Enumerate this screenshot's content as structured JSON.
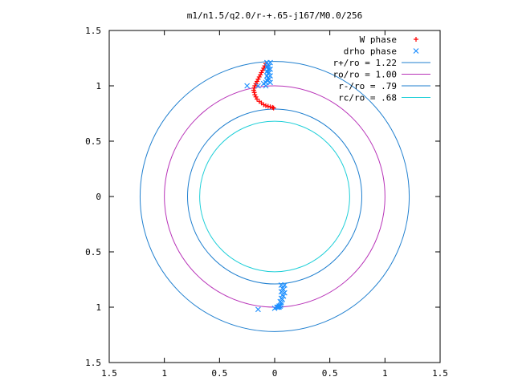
{
  "chart_data": {
    "type": "scatter",
    "title": "m1/n1.5/q2.0/r-+.65-j167/M0.0/256",
    "xlabel": "",
    "ylabel": "",
    "xlim": [
      -1.5,
      1.5
    ],
    "ylim": [
      -1.5,
      1.5
    ],
    "x_tick_values": [
      -1.5,
      -1,
      -0.5,
      0,
      0.5,
      1,
      1.5
    ],
    "x_tick_labels": [
      "1.5",
      "1",
      "0.5",
      "0",
      "0.5",
      "1",
      "1.5"
    ],
    "y_tick_values": [
      1.5,
      1,
      0.5,
      0,
      -0.5,
      -1,
      -1.5
    ],
    "y_tick_labels": [
      "1.5",
      "1",
      "0.5",
      "0",
      "0.5",
      "1",
      "1.5"
    ],
    "grid": false,
    "legend_position": "top-right",
    "circles": [
      {
        "name": "r+/ro = 1.22",
        "radius": 1.22,
        "color": "#1f7fcf"
      },
      {
        "name": "ro/ro = 1.00",
        "radius": 1.0,
        "color": "#b833b8"
      },
      {
        "name": "r-/ro = .79",
        "radius": 0.79,
        "color": "#1f7fcf"
      },
      {
        "name": "rc/ro = .68",
        "radius": 0.68,
        "color": "#1fcfd8"
      }
    ],
    "series": [
      {
        "name": "W phase",
        "marker": "+",
        "color": "#ff0000",
        "points": [
          [
            -0.08,
            1.2
          ],
          [
            -0.09,
            1.18
          ],
          [
            -0.1,
            1.16
          ],
          [
            -0.11,
            1.14
          ],
          [
            -0.12,
            1.12
          ],
          [
            -0.13,
            1.1
          ],
          [
            -0.14,
            1.08
          ],
          [
            -0.15,
            1.06
          ],
          [
            -0.16,
            1.04
          ],
          [
            -0.17,
            1.02
          ],
          [
            -0.18,
            1.0
          ],
          [
            -0.185,
            0.98
          ],
          [
            -0.19,
            0.96
          ],
          [
            -0.185,
            0.94
          ],
          [
            -0.18,
            0.92
          ],
          [
            -0.17,
            0.9
          ],
          [
            -0.16,
            0.88
          ],
          [
            -0.14,
            0.86
          ],
          [
            -0.12,
            0.845
          ],
          [
            -0.1,
            0.83
          ],
          [
            -0.08,
            0.82
          ],
          [
            -0.06,
            0.815
          ],
          [
            -0.04,
            0.81
          ],
          [
            -0.02,
            0.805
          ],
          [
            -0.01,
            0.8
          ]
        ]
      },
      {
        "name": "drho phase",
        "marker": "x",
        "color": "#1e90ff",
        "points": [
          [
            -0.07,
            1.21
          ],
          [
            -0.06,
            1.19
          ],
          [
            -0.07,
            1.17
          ],
          [
            -0.06,
            1.15
          ],
          [
            -0.07,
            1.13
          ],
          [
            -0.06,
            1.11
          ],
          [
            -0.07,
            1.09
          ],
          [
            -0.06,
            1.07
          ],
          [
            -0.07,
            1.05
          ],
          [
            -0.08,
            1.03
          ],
          [
            -0.04,
            1.21
          ],
          [
            -0.05,
            1.18
          ],
          [
            -0.04,
            1.15
          ],
          [
            -0.05,
            1.12
          ],
          [
            -0.04,
            1.09
          ],
          [
            -0.05,
            1.06
          ],
          [
            -0.04,
            1.03
          ],
          [
            -0.25,
            1.0
          ],
          [
            -0.15,
            1.0
          ],
          [
            -0.1,
            1.02
          ],
          [
            -0.08,
            1.0
          ],
          [
            0.06,
            -0.8
          ],
          [
            0.07,
            -0.83
          ],
          [
            0.06,
            -0.86
          ],
          [
            0.07,
            -0.89
          ],
          [
            0.06,
            -0.92
          ],
          [
            0.05,
            -0.95
          ],
          [
            0.06,
            -0.98
          ],
          [
            0.04,
            -1.0
          ],
          [
            0.09,
            -0.8
          ],
          [
            0.08,
            -0.84
          ],
          [
            0.09,
            -0.87
          ],
          [
            0.08,
            -0.9
          ],
          [
            0.07,
            -0.93
          ],
          [
            0.06,
            -0.96
          ],
          [
            0.05,
            -0.99
          ],
          [
            0.03,
            -1.0
          ],
          [
            0.0,
            -1.01
          ],
          [
            0.02,
            -1.0
          ],
          [
            0.04,
            -0.99
          ],
          [
            -0.15,
            -1.02
          ]
        ]
      }
    ]
  }
}
